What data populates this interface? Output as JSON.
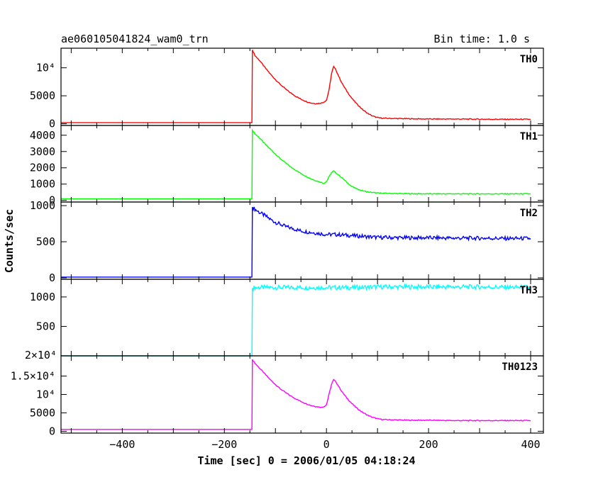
{
  "chart_data": {
    "type": "line",
    "title": "ae060105041824_wam0_trn",
    "bin_time": "Bin time: 1.0 s",
    "xlabel": "Time [sec] 0 = 2006/01/05 04:18:24",
    "ylabel": "Counts/sec",
    "xlim": [
      -520,
      425
    ],
    "x_ticks": [
      -400,
      -200,
      0,
      200,
      400
    ],
    "x_tick_labels": [
      "−400",
      "−200",
      "0",
      "200",
      "400"
    ],
    "panels": [
      {
        "name": "TH0",
        "color": "#ff0000",
        "ylim": [
          -300,
          13500
        ],
        "y_ticks": [
          0,
          5000,
          10000
        ],
        "y_tick_labels": [
          "0",
          "5000",
          "10⁴"
        ],
        "series": [
          {
            "x": [
              -520,
              -146,
              -145,
              -140,
              -130,
              -120,
              -110,
              -100,
              -90,
              -80,
              -70,
              -60,
              -50,
              -40,
              -30,
              -20,
              -10,
              -5,
              0,
              5,
              10,
              14,
              18,
              24,
              30,
              40,
              50,
              60,
              70,
              80,
              90,
              100,
              110,
              130,
              160,
              200,
              250,
              300,
              350,
              400
            ],
            "y": [
              200,
              200,
              13200,
              12200,
              11200,
              10000,
              8900,
              7900,
              7000,
              6200,
              5500,
              4900,
              4400,
              4000,
              3700,
              3600,
              3700,
              3900,
              4200,
              6000,
              9000,
              10200,
              9700,
              8500,
              7300,
              5800,
              4500,
              3500,
              2600,
              1900,
              1400,
              1100,
              1000,
              950,
              900,
              850,
              850,
              820,
              800,
              800
            ]
          }
        ]
      },
      {
        "name": "TH1",
        "color": "#00ff00",
        "ylim": [
          -100,
          4600
        ],
        "y_ticks": [
          0,
          1000,
          2000,
          3000,
          4000
        ],
        "y_tick_labels": [
          "0",
          "1000",
          "2000",
          "3000",
          "4000"
        ],
        "series": [
          {
            "x": [
              -520,
              -146,
              -145,
              -140,
              -130,
              -120,
              -110,
              -100,
              -90,
              -80,
              -70,
              -60,
              -50,
              -40,
              -30,
              -20,
              -10,
              -5,
              0,
              5,
              10,
              14,
              20,
              30,
              40,
              50,
              60,
              70,
              80,
              100,
              130,
              160,
              200,
              250,
              300,
              350,
              400
            ],
            "y": [
              100,
              100,
              4300,
              4100,
              3800,
              3450,
              3150,
              2850,
              2550,
              2300,
              2050,
              1850,
              1650,
              1480,
              1320,
              1200,
              1100,
              1050,
              1150,
              1450,
              1700,
              1800,
              1650,
              1400,
              1100,
              850,
              700,
              600,
              520,
              450,
              420,
              410,
              400,
              400,
              400,
              400,
              400
            ]
          }
        ]
      },
      {
        "name": "TH2",
        "color": "#0000ff",
        "ylim": [
          -20,
          1050
        ],
        "y_ticks": [
          0,
          500,
          1000
        ],
        "y_tick_labels": [
          "0",
          "500",
          "1000"
        ],
        "series": [
          {
            "x": [
              -520,
              -146,
              -145,
              -140,
              -130,
              -120,
              -110,
              -100,
              -90,
              -80,
              -70,
              -60,
              -50,
              -40,
              -30,
              -20,
              -10,
              0,
              20,
              40,
              60,
              80,
              100,
              150,
              200,
              250,
              300,
              350,
              400
            ],
            "y": [
              10,
              10,
              980,
              950,
              900,
              860,
              810,
              770,
              740,
              710,
              690,
              670,
              650,
              640,
              630,
              620,
              610,
              600,
              600,
              590,
              580,
              570,
              560,
              555,
              555,
              550,
              550,
              545,
              545
            ]
          }
        ]
      },
      {
        "name": "TH3",
        "color": "#00ffff",
        "ylim": [
          0,
          1300
        ],
        "y_ticks": [
          500,
          1000
        ],
        "y_tick_labels": [
          "500",
          "1000"
        ],
        "series": [
          {
            "x": [
              -520,
              -146,
              -145,
              -140,
              -100,
              -50,
              0,
              50,
              100,
              200,
              300,
              400
            ],
            "y": [
              0,
              0,
              1150,
              1160,
              1160,
              1160,
              1160,
              1160,
              1170,
              1170,
              1170,
              1160
            ]
          }
        ]
      },
      {
        "name": "TH0123",
        "color": "#ff00ff",
        "ylim": [
          -500,
          20500
        ],
        "y_ticks": [
          0,
          5000,
          10000,
          15000
        ],
        "y_tick_labels": [
          "0",
          "5000",
          "10⁴",
          "1.5×10⁴"
        ],
        "series": [
          {
            "x": [
              -520,
              -146,
              -145,
              -140,
              -130,
              -120,
              -110,
              -100,
              -90,
              -80,
              -70,
              -60,
              -50,
              -40,
              -30,
              -20,
              -10,
              -5,
              0,
              5,
              10,
              14,
              18,
              24,
              30,
              40,
              50,
              60,
              70,
              80,
              90,
              100,
              110,
              130,
              160,
              200,
              250,
              300,
              350,
              400
            ],
            "y": [
              500,
              500,
              19500,
              18500,
              17000,
              15500,
              14000,
              12700,
              11500,
              10500,
              9600,
              8800,
              8100,
              7500,
              7000,
              6700,
              6500,
              6700,
              7200,
              10000,
              12800,
              14000,
              13500,
              12200,
              10800,
              9000,
              7500,
              6200,
              5200,
              4400,
              3800,
              3400,
              3200,
              3100,
              3000,
              3000,
              2900,
              2900,
              2900,
              2900
            ]
          }
        ]
      }
    ],
    "partial_tick_label": "2×10⁴"
  }
}
